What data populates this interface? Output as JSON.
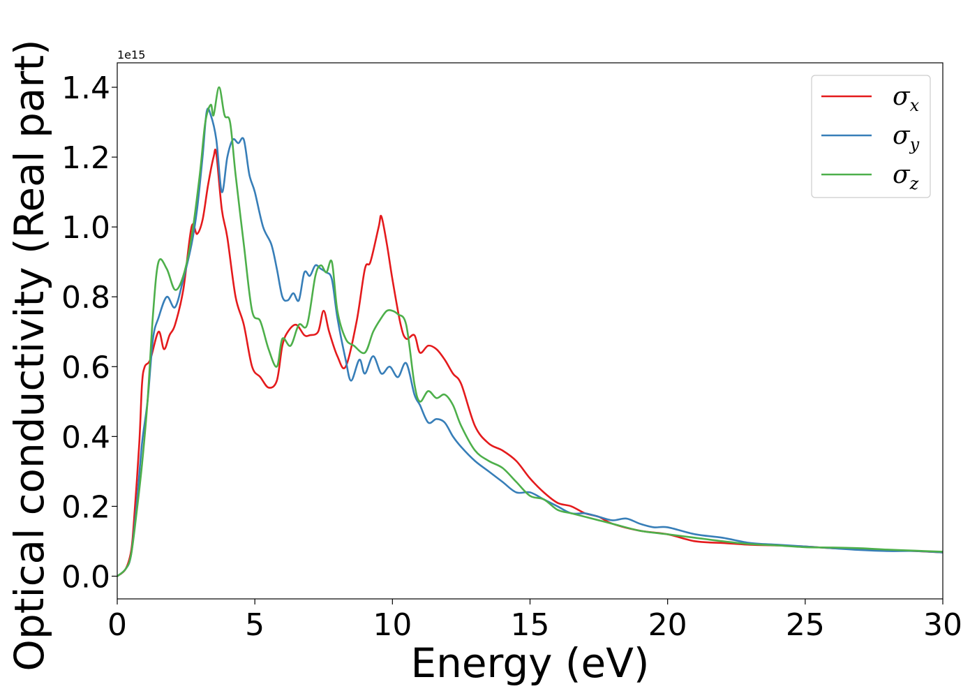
{
  "chart_data": {
    "type": "line",
    "xlabel": "Energy (eV)",
    "ylabel": "Optical conductivity (Real part)",
    "y_offset_label": "1e15",
    "xlim": [
      0,
      30
    ],
    "ylim": [
      -0.065,
      1.47
    ],
    "x_ticks": [
      0,
      5,
      10,
      15,
      20,
      25,
      30
    ],
    "y_ticks": [
      0.0,
      0.2,
      0.4,
      0.6,
      0.8,
      1.0,
      1.2,
      1.4
    ],
    "x_tick_labels": [
      "0",
      "5",
      "10",
      "15",
      "20",
      "25",
      "30"
    ],
    "y_tick_labels": [
      "0.0",
      "0.2",
      "0.4",
      "0.6",
      "0.8",
      "1.0",
      "1.2",
      "1.4"
    ],
    "grid": false,
    "legend": {
      "position": "top-right"
    },
    "series": [
      {
        "name": "σx",
        "symbol": "σ",
        "subscript": "x",
        "color": "#e41a1c",
        "x": [
          0,
          0.3,
          0.5,
          0.6,
          0.8,
          0.9,
          1.0,
          1.2,
          1.5,
          1.7,
          1.9,
          2.1,
          2.4,
          2.7,
          2.9,
          3.1,
          3.3,
          3.5,
          3.6,
          3.8,
          4.0,
          4.3,
          4.6,
          4.9,
          5.2,
          5.5,
          5.8,
          6.0,
          6.2,
          6.5,
          6.8,
          7.0,
          7.3,
          7.5,
          7.7,
          8.0,
          8.3,
          8.7,
          9.0,
          9.2,
          9.5,
          9.6,
          9.8,
          10.0,
          10.3,
          10.5,
          10.8,
          11.0,
          11.3,
          11.6,
          11.9,
          12.2,
          12.5,
          13.0,
          13.5,
          14.0,
          14.5,
          15.0,
          15.5,
          16.0,
          16.5,
          17.0,
          17.5,
          18.0,
          19.0,
          20.0,
          21.0,
          22.0,
          23.0,
          24.0,
          25.0,
          26.0,
          27.0,
          28.0,
          29.0,
          30.0
        ],
        "y": [
          0.0,
          0.02,
          0.07,
          0.15,
          0.38,
          0.55,
          0.6,
          0.62,
          0.7,
          0.65,
          0.69,
          0.72,
          0.82,
          1.0,
          0.98,
          1.02,
          1.12,
          1.2,
          1.21,
          1.05,
          0.97,
          0.8,
          0.72,
          0.6,
          0.57,
          0.54,
          0.56,
          0.66,
          0.7,
          0.72,
          0.69,
          0.69,
          0.7,
          0.76,
          0.7,
          0.63,
          0.6,
          0.73,
          0.88,
          0.9,
          1.0,
          1.03,
          0.95,
          0.85,
          0.72,
          0.68,
          0.69,
          0.64,
          0.66,
          0.65,
          0.62,
          0.58,
          0.55,
          0.43,
          0.38,
          0.36,
          0.33,
          0.28,
          0.24,
          0.21,
          0.2,
          0.18,
          0.17,
          0.15,
          0.13,
          0.12,
          0.1,
          0.095,
          0.09,
          0.088,
          0.085,
          0.08,
          0.078,
          0.075,
          0.072,
          0.068
        ]
      },
      {
        "name": "σy",
        "symbol": "σ",
        "subscript": "y",
        "color": "#377eb8",
        "x": [
          0,
          0.3,
          0.5,
          0.7,
          0.9,
          1.1,
          1.3,
          1.5,
          1.8,
          2.1,
          2.4,
          2.7,
          2.9,
          3.1,
          3.25,
          3.4,
          3.6,
          3.8,
          4.0,
          4.2,
          4.4,
          4.6,
          4.8,
          5.0,
          5.3,
          5.6,
          5.8,
          6.0,
          6.2,
          6.4,
          6.6,
          6.8,
          7.0,
          7.2,
          7.4,
          7.6,
          7.8,
          8.0,
          8.3,
          8.5,
          8.8,
          9.0,
          9.3,
          9.6,
          9.9,
          10.2,
          10.5,
          10.8,
          11.0,
          11.3,
          11.6,
          11.9,
          12.2,
          12.5,
          13.0,
          13.5,
          14.0,
          14.5,
          15.0,
          15.5,
          16.0,
          16.5,
          17.0,
          17.5,
          18.0,
          18.5,
          19.0,
          19.5,
          20.0,
          21.0,
          22.0,
          23.0,
          24.0,
          25.0,
          26.0,
          27.0,
          28.0,
          29.0,
          30.0
        ],
        "y": [
          0.0,
          0.02,
          0.06,
          0.2,
          0.38,
          0.5,
          0.68,
          0.74,
          0.8,
          0.77,
          0.85,
          0.95,
          1.05,
          1.2,
          1.33,
          1.32,
          1.25,
          1.1,
          1.2,
          1.25,
          1.24,
          1.25,
          1.15,
          1.1,
          1.0,
          0.95,
          0.88,
          0.8,
          0.79,
          0.81,
          0.79,
          0.87,
          0.86,
          0.89,
          0.88,
          0.87,
          0.85,
          0.74,
          0.62,
          0.56,
          0.62,
          0.58,
          0.63,
          0.58,
          0.6,
          0.57,
          0.61,
          0.52,
          0.49,
          0.44,
          0.45,
          0.44,
          0.4,
          0.37,
          0.33,
          0.3,
          0.27,
          0.24,
          0.24,
          0.22,
          0.2,
          0.18,
          0.18,
          0.17,
          0.16,
          0.165,
          0.15,
          0.14,
          0.14,
          0.12,
          0.11,
          0.095,
          0.09,
          0.085,
          0.08,
          0.075,
          0.072,
          0.072,
          0.068
        ]
      },
      {
        "name": "σz",
        "symbol": "σ",
        "subscript": "z",
        "color": "#4daf4a",
        "x": [
          0,
          0.3,
          0.5,
          0.7,
          0.9,
          1.1,
          1.3,
          1.5,
          1.8,
          2.1,
          2.4,
          2.7,
          3.0,
          3.2,
          3.4,
          3.5,
          3.7,
          3.9,
          4.1,
          4.3,
          4.6,
          4.9,
          5.2,
          5.5,
          5.8,
          6.0,
          6.3,
          6.6,
          6.9,
          7.2,
          7.4,
          7.6,
          7.8,
          8.0,
          8.3,
          8.6,
          9.0,
          9.3,
          9.6,
          9.8,
          10.0,
          10.2,
          10.5,
          10.8,
          11.0,
          11.3,
          11.6,
          11.9,
          12.2,
          12.5,
          13.0,
          13.5,
          14.0,
          14.5,
          15.0,
          15.5,
          16.0,
          16.5,
          17.0,
          17.5,
          18.0,
          19.0,
          20.0,
          21.0,
          22.0,
          23.0,
          24.0,
          25.0,
          26.0,
          27.0,
          28.0,
          29.0,
          30.0
        ],
        "y": [
          0.0,
          0.02,
          0.06,
          0.18,
          0.32,
          0.5,
          0.75,
          0.9,
          0.88,
          0.82,
          0.86,
          0.97,
          1.15,
          1.3,
          1.35,
          1.32,
          1.4,
          1.32,
          1.3,
          1.15,
          0.95,
          0.76,
          0.73,
          0.65,
          0.6,
          0.68,
          0.66,
          0.72,
          0.72,
          0.86,
          0.89,
          0.87,
          0.9,
          0.76,
          0.68,
          0.66,
          0.64,
          0.7,
          0.74,
          0.76,
          0.76,
          0.75,
          0.72,
          0.55,
          0.5,
          0.53,
          0.51,
          0.52,
          0.49,
          0.43,
          0.36,
          0.33,
          0.31,
          0.27,
          0.23,
          0.22,
          0.19,
          0.18,
          0.17,
          0.16,
          0.15,
          0.13,
          0.12,
          0.11,
          0.1,
          0.092,
          0.088,
          0.083,
          0.082,
          0.08,
          0.076,
          0.073,
          0.07
        ]
      }
    ]
  }
}
